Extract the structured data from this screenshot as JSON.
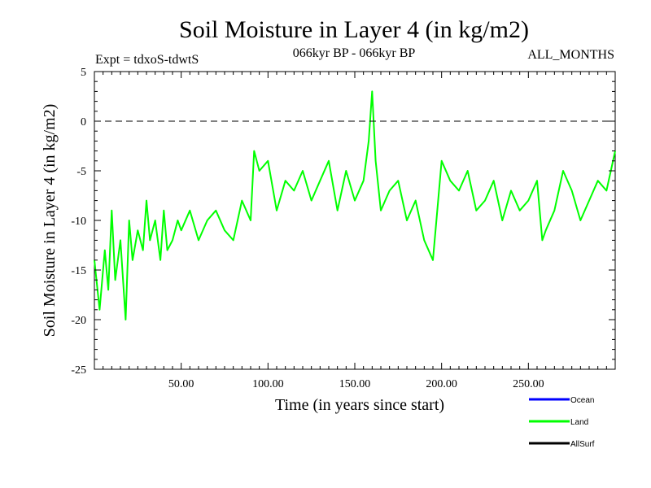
{
  "chart_data": {
    "type": "line",
    "title": "Soil Moisture in Layer 4 (in kg/m2)",
    "subtitle_left": "Expt = tdxoS-tdwtS",
    "subtitle_center": "066kyr BP - 066kyr BP",
    "subtitle_right": "ALL_MONTHS",
    "xlabel": "Time (in years since start)",
    "ylabel": "Soil Moisture in Layer 4 (in kg/m2)",
    "xlim": [
      0,
      300
    ],
    "ylim": [
      -25,
      5
    ],
    "x_ticks": [
      {
        "value": 50,
        "label": "50.00"
      },
      {
        "value": 100,
        "label": "100.00"
      },
      {
        "value": 150,
        "label": "150.00"
      },
      {
        "value": 200,
        "label": "200.00"
      },
      {
        "value": 250,
        "label": "250.00"
      }
    ],
    "y_ticks": [
      {
        "value": 5,
        "label": "5"
      },
      {
        "value": 0,
        "label": "0"
      },
      {
        "value": -5,
        "label": "-5"
      },
      {
        "value": -10,
        "label": "-10"
      },
      {
        "value": -15,
        "label": "-15"
      },
      {
        "value": -20,
        "label": "-20"
      },
      {
        "value": -25,
        "label": "-25"
      }
    ],
    "reference_line": {
      "value": 0,
      "style": "dashed"
    },
    "legend": [
      {
        "name": "Ocean",
        "color": "#0000ff"
      },
      {
        "name": "Land",
        "color": "#00ff00"
      },
      {
        "name": "AllSurf",
        "color": "#000000"
      }
    ],
    "legend_position": "bottom-right",
    "series": [
      {
        "name": "Land",
        "color": "#00ff00",
        "x": [
          0,
          3,
          6,
          8,
          10,
          12,
          15,
          18,
          20,
          22,
          25,
          28,
          30,
          32,
          35,
          38,
          40,
          42,
          45,
          48,
          50,
          55,
          60,
          65,
          70,
          75,
          80,
          85,
          90,
          92,
          95,
          100,
          105,
          110,
          115,
          120,
          125,
          130,
          135,
          140,
          145,
          150,
          155,
          158,
          160,
          162,
          165,
          170,
          175,
          180,
          185,
          190,
          195,
          197,
          200,
          205,
          210,
          215,
          220,
          225,
          230,
          235,
          240,
          245,
          250,
          255,
          258,
          260,
          265,
          270,
          275,
          280,
          285,
          290,
          295,
          300
        ],
        "values": [
          -14,
          -19,
          -13,
          -17,
          -9,
          -16,
          -12,
          -20,
          -10,
          -14,
          -11,
          -13,
          -8,
          -12,
          -10,
          -14,
          -9,
          -13,
          -12,
          -10,
          -11,
          -9,
          -12,
          -10,
          -9,
          -11,
          -12,
          -8,
          -10,
          -3,
          -5,
          -4,
          -9,
          -6,
          -7,
          -5,
          -8,
          -6,
          -4,
          -9,
          -5,
          -8,
          -6,
          -2,
          3,
          -4,
          -9,
          -7,
          -6,
          -10,
          -8,
          -12,
          -14,
          -10,
          -4,
          -6,
          -7,
          -5,
          -9,
          -8,
          -6,
          -10,
          -7,
          -9,
          -8,
          -6,
          -12,
          -11,
          -9,
          -5,
          -7,
          -10,
          -8,
          -6,
          -7,
          -3
        ]
      }
    ]
  }
}
